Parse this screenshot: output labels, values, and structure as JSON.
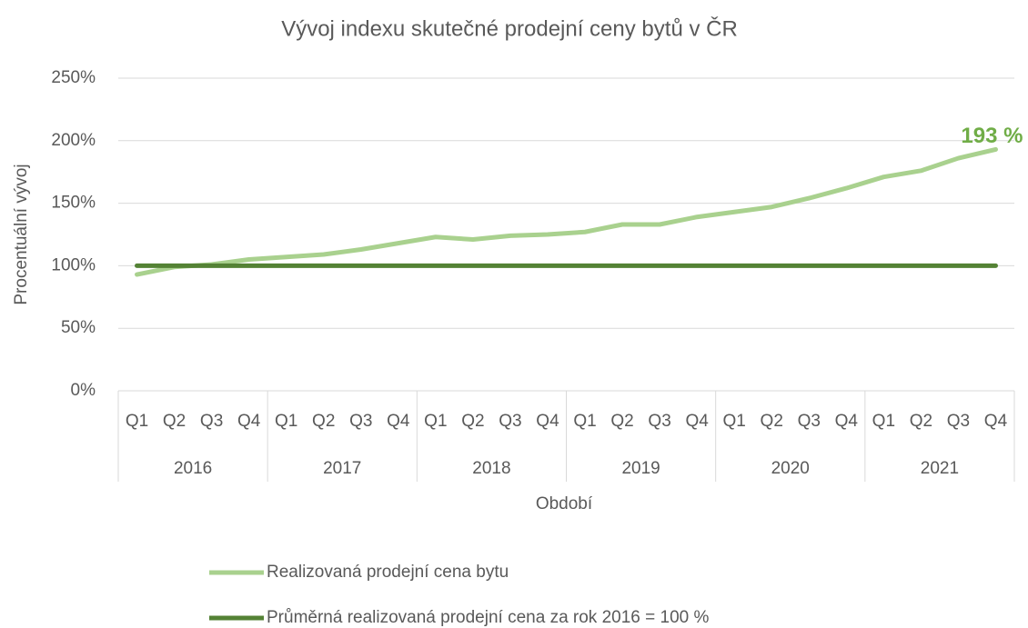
{
  "chart_data": {
    "type": "line",
    "title": "Vývoj indexu skutečné prodejní ceny bytů v ČR",
    "x_label": "Období",
    "y_label": "Procentuální vývoj",
    "categories": [
      "Q1",
      "Q2",
      "Q3",
      "Q4",
      "Q1",
      "Q2",
      "Q3",
      "Q4",
      "Q1",
      "Q2",
      "Q3",
      "Q4",
      "Q1",
      "Q2",
      "Q3",
      "Q4",
      "Q1",
      "Q2",
      "Q3",
      "Q4",
      "Q1",
      "Q2",
      "Q3",
      "Q4"
    ],
    "groups": [
      "2016",
      "2017",
      "2018",
      "2019",
      "2020",
      "2021"
    ],
    "series": [
      {
        "name": "Realizovaná prodejní cena bytu",
        "color": "#a9d18e",
        "values": [
          93,
          99,
          101,
          105,
          107,
          109,
          113,
          118,
          123,
          121,
          124,
          125,
          127,
          133,
          133,
          139,
          143,
          147,
          154,
          162,
          171,
          176,
          186,
          193
        ],
        "value_labels": [
          null,
          null,
          null,
          null,
          null,
          null,
          null,
          null,
          null,
          null,
          null,
          null,
          null,
          null,
          null,
          null,
          null,
          null,
          null,
          null,
          null,
          null,
          null,
          "193 %"
        ],
        "label_color": "#70ad47"
      },
      {
        "name": "Průměrná realizovaná prodejní cena za rok 2016 = 100 %",
        "color": "#548235",
        "values": [
          100,
          100,
          100,
          100,
          100,
          100,
          100,
          100,
          100,
          100,
          100,
          100,
          100,
          100,
          100,
          100,
          100,
          100,
          100,
          100,
          100,
          100,
          100,
          100
        ]
      }
    ],
    "ylim": [
      0,
      250
    ],
    "yticks": [
      {
        "value": 0,
        "label": "0%"
      },
      {
        "value": 50,
        "label": "50%"
      },
      {
        "value": 100,
        "label": "100%"
      },
      {
        "value": 150,
        "label": "150%"
      },
      {
        "value": 200,
        "label": "200%"
      },
      {
        "value": 250,
        "label": "250%"
      }
    ],
    "grid": true
  }
}
